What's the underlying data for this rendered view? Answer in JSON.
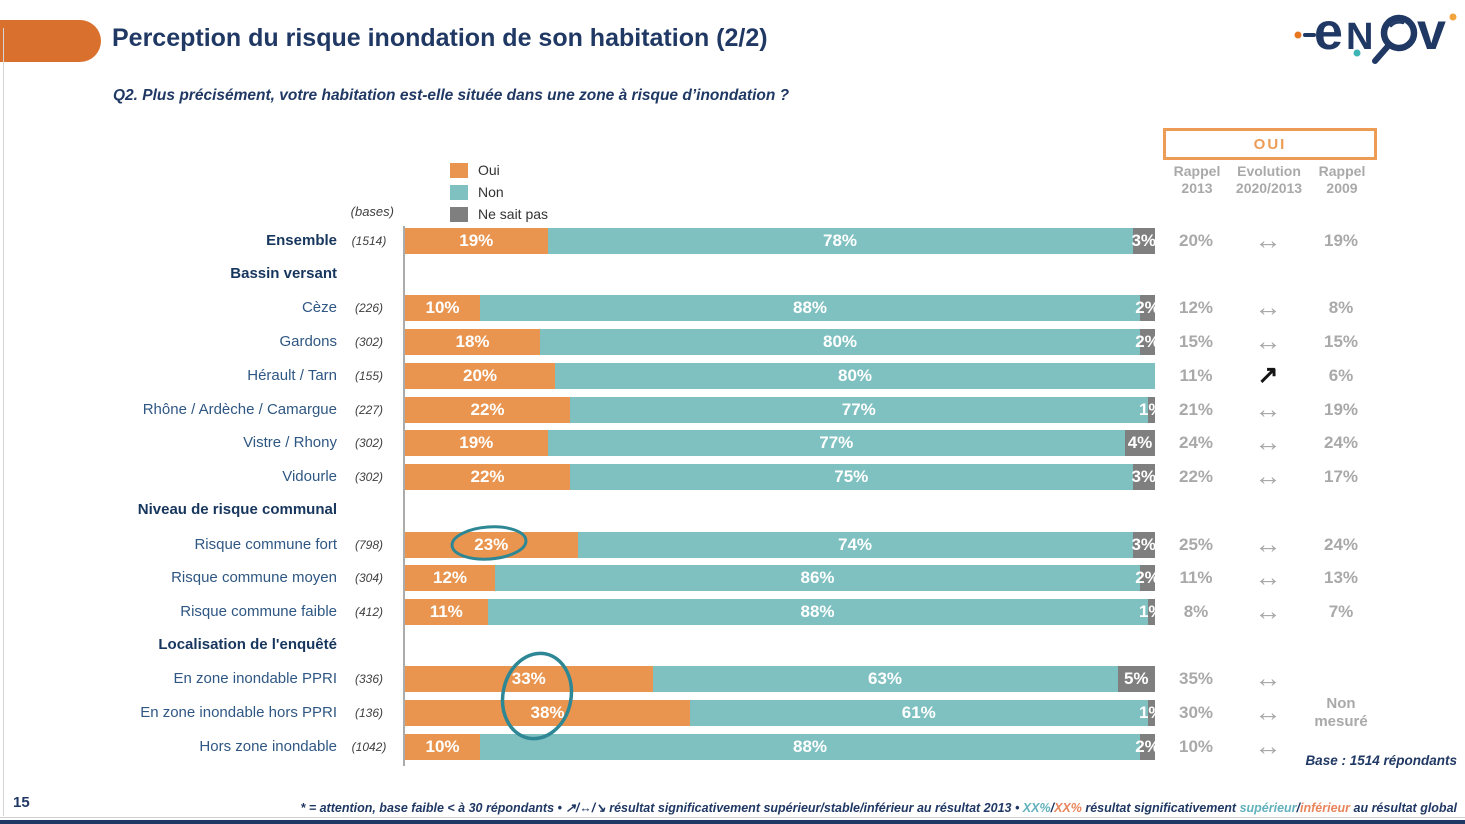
{
  "slide": {
    "page_number": "15",
    "title": "Perception du risque inondation de son habitation (2/2)",
    "question": "Q2. Plus précisément, votre habitation est-elle située dans une zone à risque d’inondation ?",
    "footer_base": "Base : 1514 répondants"
  },
  "logo": {
    "letters": [
      "e",
      "N",
      "v"
    ],
    "name": "enov"
  },
  "colors": {
    "oui": "#E9954F",
    "non": "#7FC0C1",
    "nsp": "#7F7F7F",
    "accent": "#D9702E",
    "navy": "#203864",
    "gray_text": "#A9A9A9",
    "circle": "#2E8795"
  },
  "legend": {
    "items": [
      {
        "label": "Oui",
        "color": "#E9954F"
      },
      {
        "label": "Non",
        "color": "#7FC0C1"
      },
      {
        "label": "Ne sait pas",
        "color": "#7F7F7F"
      }
    ]
  },
  "bases_label": "(bases)",
  "oui_box_label": "OUI",
  "columns": [
    {
      "line1": "Rappel",
      "line2": "2013"
    },
    {
      "line1": "Evolution",
      "line2": "2020/2013"
    },
    {
      "line1": "Rappel",
      "line2": "2009"
    }
  ],
  "non_mesure": {
    "line1": "Non",
    "line2": "mesuré"
  },
  "chart_data": {
    "type": "bar",
    "orientation": "horizontal",
    "stacked": true,
    "unit": "%",
    "axis_max": 100,
    "series_names": [
      "Oui",
      "Non",
      "Ne sait pas"
    ],
    "rows": [
      {
        "type": "data",
        "label": "Ensemble",
        "base": "(1514)",
        "emphasis": true,
        "oui": 19,
        "non": 78,
        "nsp": 3,
        "rappel2013": "20%",
        "evolution": "stable",
        "rappel2009": "19%"
      },
      {
        "type": "header",
        "label": "Bassin versant"
      },
      {
        "type": "data",
        "label": "Cèze",
        "base": "(226)",
        "oui": 10,
        "non": 88,
        "nsp": 2,
        "rappel2013": "12%",
        "evolution": "stable",
        "rappel2009": "8%"
      },
      {
        "type": "data",
        "label": "Gardons",
        "base": "(302)",
        "oui": 18,
        "non": 80,
        "nsp": 2,
        "rappel2013": "15%",
        "evolution": "stable",
        "rappel2009": "15%"
      },
      {
        "type": "data",
        "label": "Hérault / Tarn",
        "base": "(155)",
        "oui": 20,
        "non": 80,
        "nsp": 0,
        "rappel2013": "11%",
        "evolution": "up",
        "rappel2009": "6%"
      },
      {
        "type": "data",
        "label": "Rhône / Ardèche / Camargue",
        "base": "(227)",
        "oui": 22,
        "non": 77,
        "nsp": 1,
        "rappel2013": "21%",
        "evolution": "stable",
        "rappel2009": "19%"
      },
      {
        "type": "data",
        "label": "Vistre / Rhony",
        "base": "(302)",
        "oui": 19,
        "non": 77,
        "nsp": 4,
        "rappel2013": "24%",
        "evolution": "stable",
        "rappel2009": "24%"
      },
      {
        "type": "data",
        "label": "Vidourle",
        "base": "(302)",
        "oui": 22,
        "non": 75,
        "nsp": 3,
        "rappel2013": "22%",
        "evolution": "stable",
        "rappel2009": "17%"
      },
      {
        "type": "header",
        "label": "Niveau de risque communal"
      },
      {
        "type": "data",
        "label": "Risque commune fort",
        "base": "(798)",
        "oui": 23,
        "non": 74,
        "nsp": 3,
        "rappel2013": "25%",
        "evolution": "stable",
        "rappel2009": "24%"
      },
      {
        "type": "data",
        "label": "Risque commune moyen",
        "base": "(304)",
        "oui": 12,
        "non": 86,
        "nsp": 2,
        "rappel2013": "11%",
        "evolution": "stable",
        "rappel2009": "13%"
      },
      {
        "type": "data",
        "label": "Risque commune faible",
        "base": "(412)",
        "oui": 11,
        "non": 88,
        "nsp": 1,
        "rappel2013": "8%",
        "evolution": "stable",
        "rappel2009": "7%"
      },
      {
        "type": "header",
        "label": "Localisation de l'enquêté"
      },
      {
        "type": "data",
        "label": "En zone inondable PPRI",
        "base": "(336)",
        "oui": 33,
        "non": 63,
        "nsp": 5,
        "rappel2013": "35%",
        "evolution": "stable",
        "rappel2009": null
      },
      {
        "type": "data",
        "label": "En zone inondable hors PPRI",
        "base": "(136)",
        "oui": 38,
        "non": 61,
        "nsp": 1,
        "rappel2013": "30%",
        "evolution": "stable",
        "rappel2009": null
      },
      {
        "type": "data",
        "label": "Hors zone inondable",
        "base": "(1042)",
        "oui": 10,
        "non": 88,
        "nsp": 2,
        "rappel2013": "10%",
        "evolution": "stable",
        "rappel2009": null
      }
    ],
    "annotations": {
      "circled_values": [
        "23%",
        "33%",
        "38%"
      ]
    }
  },
  "footnote_parts": [
    {
      "text": "* = attention, base faible < à 30 répondants • ",
      "color": "#203864"
    },
    {
      "text": "↗/↔/↘",
      "color": "#203864"
    },
    {
      "text": " résultat significativement supérieur/stable/inférieur au résultat 2013 • ",
      "color": "#203864"
    },
    {
      "text": "XX%",
      "color": "#62B1BC"
    },
    {
      "text": "/",
      "color": "#203864"
    },
    {
      "text": "XX%",
      "color": "#E8855A"
    },
    {
      "text": " résultat significativement ",
      "color": "#203864"
    },
    {
      "text": "supérieur",
      "color": "#62B1BC"
    },
    {
      "text": "/",
      "color": "#203864"
    },
    {
      "text": "inférieur",
      "color": "#E8855A"
    },
    {
      "text": " au résultat global",
      "color": "#203864"
    }
  ]
}
